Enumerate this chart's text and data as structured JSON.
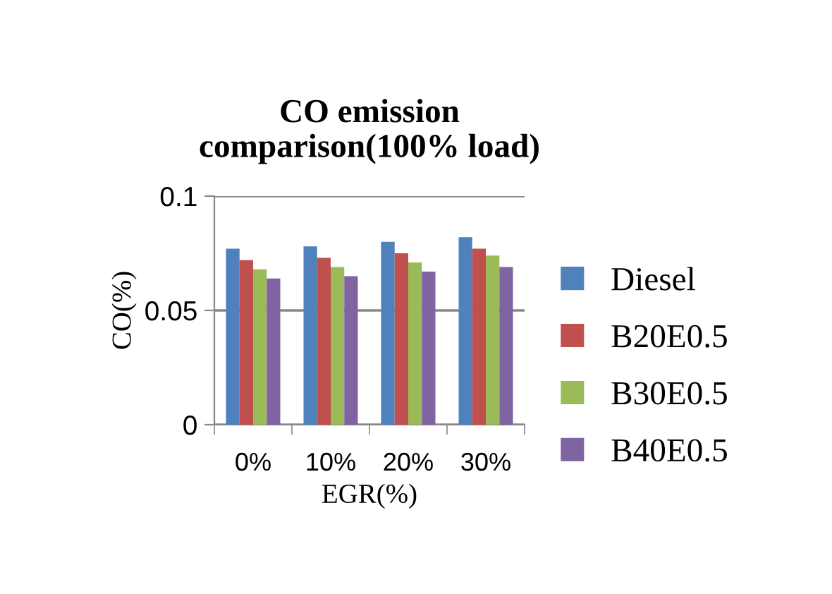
{
  "chart_data": {
    "type": "bar",
    "title": "CO emission\ncomparison(100% load)",
    "xlabel": "EGR(%)",
    "ylabel": "CO(%)",
    "categories": [
      "0%",
      "10%",
      "20%",
      "30%"
    ],
    "series": [
      {
        "name": "Diesel",
        "color": "#4f81bd",
        "values": [
          0.077,
          0.078,
          0.08,
          0.082
        ]
      },
      {
        "name": "B20E0.5",
        "color": "#c0504d",
        "values": [
          0.072,
          0.073,
          0.075,
          0.077
        ]
      },
      {
        "name": "B30E0.5",
        "color": "#9bbb59",
        "values": [
          0.068,
          0.069,
          0.071,
          0.074
        ]
      },
      {
        "name": "B40E0.5",
        "color": "#8064a2",
        "values": [
          0.064,
          0.065,
          0.067,
          0.069
        ]
      }
    ],
    "ylim": [
      0,
      0.1
    ],
    "yticks": [
      0,
      0.05,
      0.1
    ],
    "grid": "y",
    "legend": "right"
  }
}
